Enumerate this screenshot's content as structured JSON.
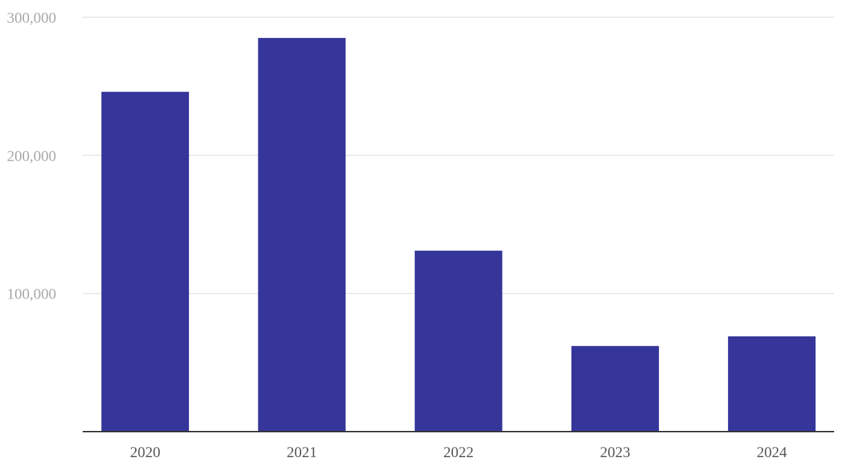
{
  "chart_data": {
    "type": "bar",
    "categories": [
      "2020",
      "2021",
      "2022",
      "2023",
      "2024"
    ],
    "values": [
      246000,
      285000,
      131000,
      62000,
      69000
    ],
    "color": "#35359a",
    "ylim": [
      0,
      300000
    ],
    "yticks": [
      {
        "value": 100000,
        "label": "100,000"
      },
      {
        "value": 200000,
        "label": "200,000"
      },
      {
        "value": 300000,
        "label": "300,000"
      }
    ],
    "grid": true
  }
}
